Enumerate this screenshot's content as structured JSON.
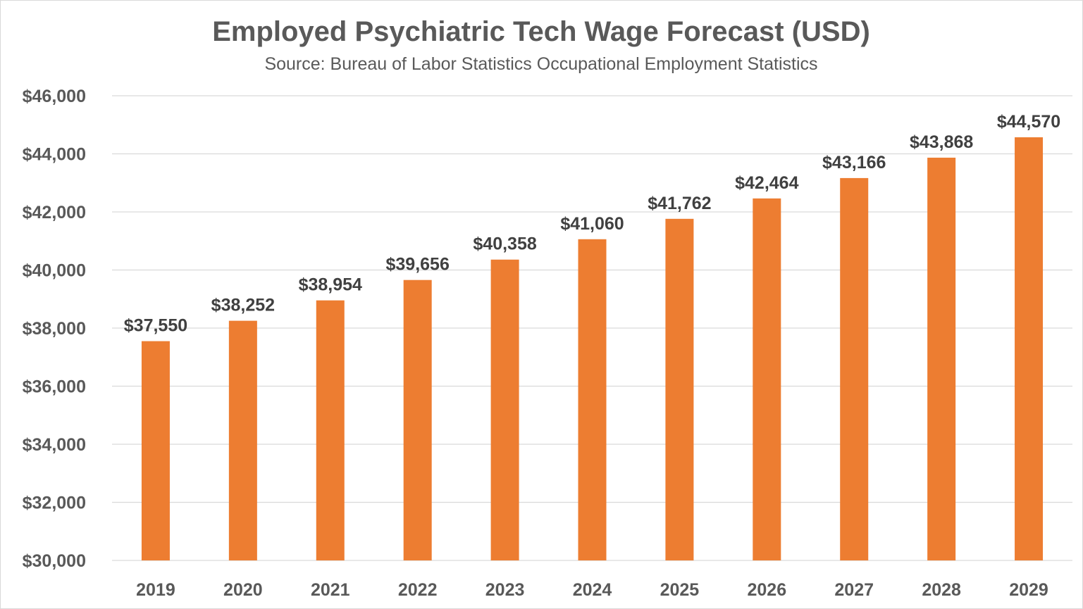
{
  "chart_data": {
    "type": "bar",
    "title": "Employed Psychiatric Tech Wage Forecast (USD)",
    "subtitle": "Source: Bureau of Labor Statistics Occupational Employment Statistics",
    "xlabel": "",
    "ylabel": "",
    "categories": [
      "2019",
      "2020",
      "2021",
      "2022",
      "2023",
      "2024",
      "2025",
      "2026",
      "2027",
      "2028",
      "2029"
    ],
    "values": [
      37550,
      38252,
      38954,
      39656,
      40358,
      41060,
      41762,
      42464,
      43166,
      43868,
      44570
    ],
    "data_labels": [
      "$37,550",
      "$38,252",
      "$38,954",
      "$39,656",
      "$40,358",
      "$41,060",
      "$41,762",
      "$42,464",
      "$43,166",
      "$43,868",
      "$44,570"
    ],
    "ylim": [
      30000,
      46000
    ],
    "yticks": [
      30000,
      32000,
      34000,
      36000,
      38000,
      40000,
      42000,
      44000,
      46000
    ],
    "ytick_labels": [
      "$30,000",
      "$32,000",
      "$34,000",
      "$36,000",
      "$38,000",
      "$40,000",
      "$42,000",
      "$44,000",
      "$46,000"
    ],
    "grid": true,
    "legend": "none",
    "colors": {
      "bar": "#ED7D31",
      "grid": "#D9D9D9",
      "text": "#595959"
    }
  }
}
